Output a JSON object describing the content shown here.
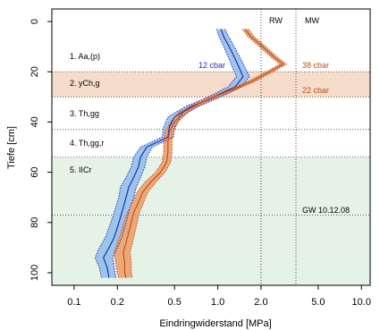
{
  "chart_data": {
    "type": "line",
    "xlabel": "Eindringwiderstand [MPa]",
    "ylabel": "Tiefe [cm]",
    "xscale": "log",
    "xlim": [
      0.07,
      11.5
    ],
    "ylim": [
      105,
      -5
    ],
    "xticks": [
      0.1,
      0.2,
      0.5,
      1.0,
      2.0,
      5.0,
      10.0
    ],
    "xtick_labels": [
      "0.1",
      "0.2",
      "0.5",
      "1.0",
      "2.0",
      "5.0",
      "10.0"
    ],
    "yticks": [
      0,
      20,
      40,
      60,
      80,
      100
    ],
    "ytick_labels": [
      "0",
      "20",
      "40",
      "60",
      "80",
      "100"
    ],
    "colors": {
      "blue_line": "#1f2fb8",
      "blue_band": "#8fbcea",
      "orange_line": "#c0501a",
      "orange_band": "#ef9a66",
      "layer_band": "#f5dccb",
      "green_zone": "#e4f3e6"
    },
    "series": [
      {
        "name": "12 cbar",
        "color": "#1f2fb8",
        "depth": [
          3,
          6,
          10,
          14,
          18,
          22,
          26,
          30,
          34,
          38,
          42,
          46,
          50,
          54,
          58,
          62,
          66,
          70,
          74,
          78,
          82,
          86,
          90,
          94,
          98,
          102
        ],
        "mean": [
          1.05,
          1.1,
          1.2,
          1.3,
          1.4,
          1.5,
          1.32,
          0.95,
          0.65,
          0.5,
          0.46,
          0.45,
          0.32,
          0.29,
          0.28,
          0.26,
          0.24,
          0.23,
          0.22,
          0.21,
          0.2,
          0.19,
          0.175,
          0.16,
          0.17,
          0.175
        ],
        "lower": [
          0.98,
          1.02,
          1.1,
          1.18,
          1.26,
          1.35,
          1.18,
          0.86,
          0.59,
          0.45,
          0.42,
          0.41,
          0.29,
          0.26,
          0.25,
          0.23,
          0.21,
          0.205,
          0.195,
          0.185,
          0.175,
          0.165,
          0.15,
          0.14,
          0.15,
          0.155
        ],
        "upper": [
          1.12,
          1.19,
          1.3,
          1.42,
          1.54,
          1.66,
          1.46,
          1.05,
          0.72,
          0.55,
          0.5,
          0.49,
          0.35,
          0.32,
          0.31,
          0.29,
          0.27,
          0.26,
          0.245,
          0.235,
          0.225,
          0.215,
          0.2,
          0.185,
          0.19,
          0.195
        ]
      },
      {
        "name": "38 cbar",
        "color": "#c0501a",
        "depth": [
          3,
          6,
          10,
          14,
          17,
          20,
          24,
          28,
          32,
          36,
          40,
          44,
          48,
          52,
          56,
          60,
          64,
          68,
          72,
          76,
          80,
          84,
          88,
          92,
          96,
          100,
          102
        ],
        "mean": [
          1.55,
          1.7,
          2.05,
          2.45,
          2.85,
          2.3,
          1.7,
          1.15,
          0.78,
          0.58,
          0.5,
          0.46,
          0.45,
          0.45,
          0.44,
          0.4,
          0.34,
          0.3,
          0.28,
          0.26,
          0.25,
          0.24,
          0.23,
          0.22,
          0.225,
          0.225,
          0.23
        ],
        "lower": [
          1.48,
          1.62,
          1.95,
          2.33,
          2.7,
          2.18,
          1.6,
          1.08,
          0.73,
          0.54,
          0.47,
          0.43,
          0.42,
          0.42,
          0.41,
          0.37,
          0.31,
          0.275,
          0.255,
          0.235,
          0.222,
          0.212,
          0.2,
          0.19,
          0.195,
          0.2,
          0.205
        ],
        "upper": [
          1.63,
          1.79,
          2.16,
          2.58,
          3.0,
          2.43,
          1.8,
          1.22,
          0.83,
          0.62,
          0.53,
          0.49,
          0.48,
          0.48,
          0.47,
          0.43,
          0.37,
          0.325,
          0.305,
          0.285,
          0.275,
          0.265,
          0.255,
          0.245,
          0.25,
          0.25,
          0.255
        ]
      }
    ],
    "reference_lines": [
      {
        "label": "RW",
        "x": 2.0
      },
      {
        "label": "MW",
        "x": 3.5
      }
    ],
    "groundwater": {
      "label": "GW 10.12.08",
      "depth": 77
    },
    "layers": [
      {
        "label": "1. Aa,(p)",
        "top": -5,
        "bottom": 20,
        "shaded": false
      },
      {
        "label": "2. yCh,g",
        "top": 20,
        "bottom": 30,
        "shaded": true
      },
      {
        "label": "3. Th,gg",
        "top": 30,
        "bottom": 43,
        "shaded": false
      },
      {
        "label": "4. Th,gg,r",
        "top": 43,
        "bottom": 54,
        "shaded": false
      },
      {
        "label": "5. IICr",
        "top": 54,
        "bottom": 105,
        "shaded": true
      }
    ],
    "annotations": [
      {
        "text": "12 cbar",
        "color": "#1f2fb8"
      },
      {
        "text": "38 cbar",
        "color": "#c0501a"
      },
      {
        "text": "22 cbar",
        "color": "#c0501a"
      }
    ]
  }
}
